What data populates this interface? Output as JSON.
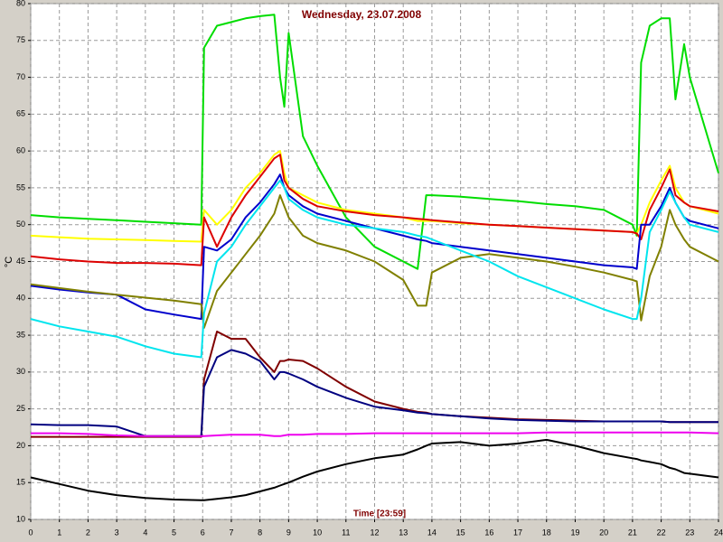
{
  "chart_data": {
    "type": "line",
    "title": "Wednesday, 23.07.2008",
    "xlabel": "Time [23:59]",
    "ylabel": "°C",
    "x": [
      0,
      1,
      2,
      3,
      4,
      5,
      5.95,
      6.05,
      6.5,
      7,
      7.5,
      8,
      8.5,
      8.7,
      8.85,
      9,
      9.5,
      10,
      11,
      12,
      13,
      13.5,
      13.8,
      14,
      15,
      16,
      17,
      18,
      19,
      20,
      21,
      21.15,
      21.3,
      21.6,
      22,
      22.3,
      22.5,
      22.8,
      23,
      24
    ],
    "xlim": [
      0,
      24
    ],
    "xticks": [
      0,
      1,
      2,
      3,
      4,
      5,
      6,
      7,
      8,
      9,
      10,
      11,
      12,
      13,
      14,
      15,
      16,
      17,
      18,
      19,
      20,
      21,
      22,
      23,
      24
    ],
    "ylim": [
      10,
      80
    ],
    "yticks": [
      10,
      15,
      20,
      25,
      30,
      35,
      40,
      45,
      50,
      55,
      60,
      65,
      70,
      75,
      80
    ],
    "grid": true,
    "series": [
      {
        "color": "#00dd00",
        "values": [
          51.3,
          51,
          50.8,
          50.6,
          50.4,
          50.2,
          50,
          74,
          77,
          77.5,
          78,
          78.3,
          78.5,
          70,
          66,
          76,
          62,
          58,
          51,
          47,
          45,
          44,
          54,
          54,
          53.8,
          53.5,
          53.2,
          52.8,
          52.5,
          52,
          50,
          48.5,
          72,
          77,
          78,
          78,
          67,
          74.5,
          70,
          57
        ]
      },
      {
        "color": "#ffff00",
        "values": [
          48.5,
          48.3,
          48.1,
          48,
          47.9,
          47.8,
          47.7,
          52,
          50,
          52,
          55,
          57,
          59.5,
          60,
          57,
          55,
          54,
          53,
          52,
          51.5,
          51,
          50.5,
          50.5,
          50.5,
          50.2,
          50,
          49.8,
          49.6,
          49.4,
          49.2,
          49,
          48.8,
          50,
          53,
          56,
          58,
          55,
          53,
          52.5,
          51.5
        ]
      },
      {
        "color": "#dd0000",
        "values": [
          45.7,
          45.3,
          45,
          44.8,
          44.8,
          44.7,
          44.5,
          51,
          47,
          51,
          54,
          56.5,
          59,
          59.5,
          56,
          55,
          53.5,
          52.5,
          51.8,
          51.3,
          51,
          50.8,
          50.7,
          50.6,
          50.3,
          50,
          49.8,
          49.6,
          49.4,
          49.2,
          49,
          48.8,
          48,
          52,
          55,
          57.5,
          54,
          53,
          52.5,
          51.8
        ]
      },
      {
        "color": "#0000cc",
        "values": [
          41.7,
          41.2,
          40.8,
          40.5,
          38.5,
          37.8,
          37.2,
          47,
          46.5,
          48,
          51,
          53,
          55.5,
          56.8,
          55,
          54,
          52.5,
          51.5,
          50.5,
          49.5,
          48.5,
          48,
          47.8,
          47.5,
          47,
          46.5,
          46,
          45.5,
          45,
          44.5,
          44.2,
          44,
          50,
          50,
          52.5,
          55,
          53,
          51,
          50.5,
          49.5
        ]
      },
      {
        "color": "#808000",
        "values": [
          41.9,
          41.4,
          40.9,
          40.5,
          40.1,
          39.7,
          39.2,
          36,
          41,
          43.5,
          46,
          48.5,
          51.5,
          54,
          52.5,
          51,
          48.5,
          47.5,
          46.5,
          45,
          42.5,
          39,
          39,
          43.5,
          45.5,
          46,
          45.5,
          45,
          44.3,
          43.5,
          42.5,
          42.3,
          37,
          43,
          47,
          52,
          50,
          48,
          47,
          45
        ]
      },
      {
        "color": "#00e5ee",
        "values": [
          37.2,
          36.2,
          35.5,
          34.8,
          33.5,
          32.5,
          32,
          38,
          45,
          47,
          50,
          52.5,
          55,
          56,
          55,
          53.5,
          52,
          51,
          50,
          49.5,
          49,
          48.5,
          48.3,
          48,
          46.5,
          45,
          43,
          41.5,
          40,
          38.5,
          37.2,
          37.2,
          40,
          49,
          52,
          54.5,
          53,
          51,
          50,
          49
        ]
      },
      {
        "color": "#800000",
        "values": [
          21.2,
          21.2,
          21.2,
          21.2,
          21.2,
          21.2,
          21.2,
          29,
          35.5,
          34.5,
          34.5,
          32,
          30,
          31.5,
          31.5,
          31.7,
          31.5,
          30.5,
          28,
          26,
          25,
          24.6,
          24.5,
          24.3,
          24,
          23.8,
          23.6,
          23.5,
          23.4,
          23.3,
          23.3,
          23.3,
          23.3,
          23.3,
          23.3,
          23.2,
          23.2,
          23.2,
          23.2,
          23.2
        ]
      },
      {
        "color": "#000080",
        "values": [
          22.9,
          22.8,
          22.8,
          22.6,
          21.3,
          21.3,
          21.3,
          28,
          32,
          33,
          32.5,
          31.5,
          29,
          30,
          30,
          29.8,
          29,
          28,
          26.5,
          25.3,
          24.8,
          24.5,
          24.4,
          24.3,
          24,
          23.7,
          23.5,
          23.4,
          23.3,
          23.3,
          23.3,
          23.3,
          23.3,
          23.3,
          23.3,
          23.2,
          23.2,
          23.2,
          23.2,
          23.2
        ]
      },
      {
        "color": "#ee00ee",
        "values": [
          21.7,
          21.7,
          21.6,
          21.4,
          21.3,
          21.3,
          21.3,
          21.3,
          21.4,
          21.5,
          21.5,
          21.5,
          21.3,
          21.3,
          21.4,
          21.5,
          21.5,
          21.6,
          21.6,
          21.7,
          21.7,
          21.7,
          21.7,
          21.7,
          21.7,
          21.7,
          21.7,
          21.8,
          21.8,
          21.8,
          21.8,
          21.8,
          21.8,
          21.8,
          21.8,
          21.8,
          21.8,
          21.8,
          21.8,
          21.7
        ]
      },
      {
        "color": "#000000",
        "values": [
          15.7,
          14.8,
          13.9,
          13.3,
          12.9,
          12.7,
          12.6,
          12.6,
          12.8,
          13,
          13.3,
          13.8,
          14.3,
          14.6,
          14.8,
          15,
          15.8,
          16.5,
          17.5,
          18.3,
          18.8,
          19.5,
          20,
          20.3,
          20.5,
          20,
          20.3,
          20.8,
          20,
          19,
          18.3,
          18.2,
          18,
          17.8,
          17.5,
          17,
          16.8,
          16.3,
          16.2,
          15.7
        ]
      }
    ]
  }
}
